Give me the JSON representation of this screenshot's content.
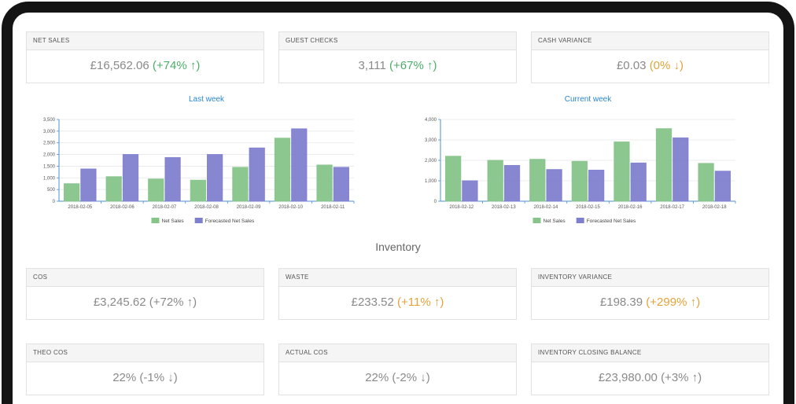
{
  "cards_top": [
    {
      "label": "NET SALES",
      "value": "£16,562.06",
      "change": "(+74% ↑)",
      "change_color": "#4cae6a"
    },
    {
      "label": "GUEST CHECKS",
      "value": "3,111",
      "change": "(+67% ↑)",
      "change_color": "#4cae6a"
    },
    {
      "label": "CASH VARIANCE",
      "value": "£0.03",
      "change": "(0% ↓)",
      "change_color": "#e3a33a"
    }
  ],
  "chart_data": [
    {
      "type": "bar",
      "title": "Last week",
      "categories": [
        "2018-02-05",
        "2018-02-06",
        "2018-02-07",
        "2018-02-08",
        "2018-02-09",
        "2018-02-10",
        "2018-02-11"
      ],
      "series": [
        {
          "name": "Net Sales",
          "color": "#86c48a",
          "values": [
            750,
            1050,
            950,
            900,
            1450,
            2700,
            1550
          ]
        },
        {
          "name": "Forecasted Net Sales",
          "color": "#7f7fcf",
          "values": [
            1380,
            2000,
            1870,
            2000,
            2280,
            3100,
            1450
          ]
        }
      ],
      "ylim": [
        0,
        3500
      ],
      "yticks": [
        0,
        500,
        {
          "value": 1000,
          "label": "1,000"
        },
        {
          "value": 1500,
          "label": "1,500"
        },
        {
          "value": 2000,
          "label": "2,000"
        },
        {
          "value": 2500,
          "label": "2,500"
        },
        {
          "value": 3000,
          "label": "3,000"
        },
        {
          "value": 3500,
          "label": "3,500"
        }
      ],
      "grid": true
    },
    {
      "type": "bar",
      "title": "Current week",
      "categories": [
        "2018-02-12",
        "2018-02-13",
        "2018-02-14",
        "2018-02-15",
        "2018-02-16",
        "2018-02-17",
        "2018-02-18"
      ],
      "series": [
        {
          "name": "Net Sales",
          "color": "#86c48a",
          "values": [
            2200,
            2000,
            2050,
            1950,
            2900,
            3550,
            1850
          ]
        },
        {
          "name": "Forecasted Net Sales",
          "color": "#7f7fcf",
          "values": [
            1000,
            1750,
            1550,
            1520,
            1870,
            3100,
            1470
          ]
        }
      ],
      "ylim": [
        0,
        4000
      ],
      "yticks": [
        0,
        {
          "value": 1000,
          "label": "1,000"
        },
        {
          "value": 2000,
          "label": "2,000"
        },
        {
          "value": 3000,
          "label": "3,000"
        },
        {
          "value": 4000,
          "label": "4,000"
        }
      ],
      "grid": true
    }
  ],
  "section_title": "Inventory",
  "cards_inventory": [
    {
      "label": "COS",
      "value": "£3,245.62",
      "change": "(+72% ↑)",
      "change_color": "#8a8a8a"
    },
    {
      "label": "WASTE",
      "value": "£233.52",
      "change": "(+11% ↑)",
      "change_color": "#e3a33a"
    },
    {
      "label": "INVENTORY VARIANCE",
      "value": "£198.39",
      "change": "(+299% ↑)",
      "change_color": "#e3a33a"
    },
    {
      "label": "THEO COS",
      "value": "22%",
      "change": "(-1% ↓)",
      "change_color": "#8a8a8a"
    },
    {
      "label": "ACTUAL COS",
      "value": "22%",
      "change": "(-2% ↓)",
      "change_color": "#8a8a8a"
    },
    {
      "label": "INVENTORY CLOSING BALANCE",
      "value": "£23,980.00",
      "change": "(+3% ↑)",
      "change_color": "#8a8a8a"
    }
  ]
}
